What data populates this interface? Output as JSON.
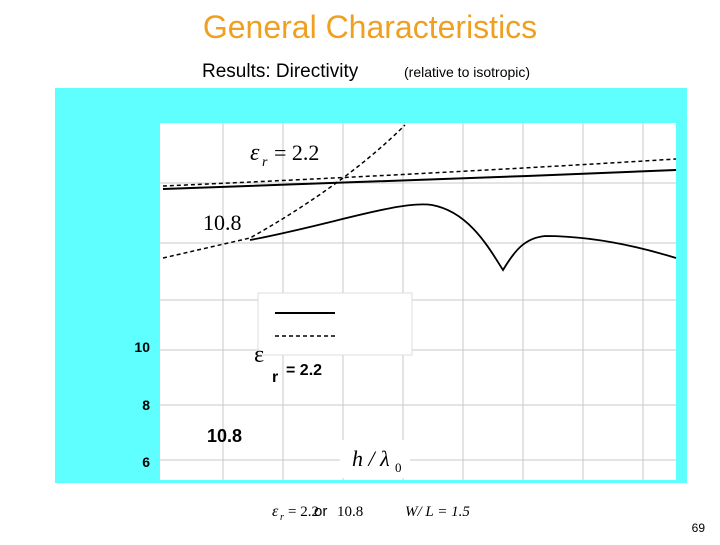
{
  "title": "General Characteristics",
  "subtitle": {
    "main": "Results: Directivity",
    "note": "(relative to isotropic)"
  },
  "plot": {
    "y_labels": [
      10,
      8,
      6
    ],
    "inner_annotations": {
      "symbol": "ε",
      "sub": "r",
      "rest": "= 2.2",
      "second": "10.8"
    },
    "overlay": {
      "symbol": "ε",
      "sub": "r",
      "rest": "= 2.2",
      "second": "10.8"
    },
    "x_label": {
      "var": "h / λ",
      "sub": "0"
    }
  },
  "caption": {
    "eps": "ε",
    "eps_sub": "r",
    "eps_text": "= 2.2",
    "or": "or",
    "second": "10.8",
    "ratio": "W/ L = 1.5"
  },
  "page_number": 69
}
